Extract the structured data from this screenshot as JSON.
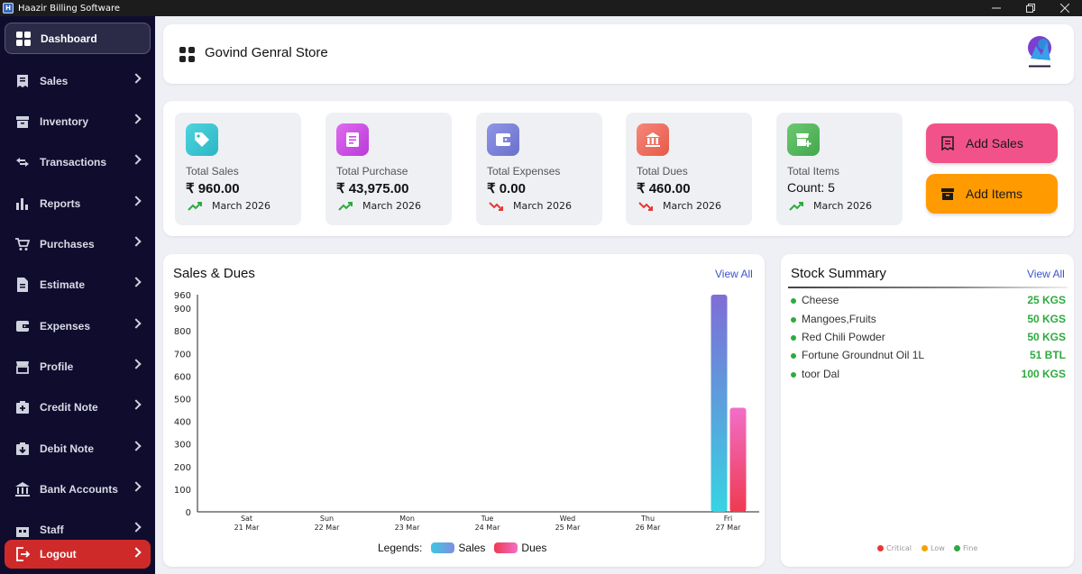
{
  "window": {
    "title": "Haazir Billing Software",
    "icon": "app-icon"
  },
  "sidebar": {
    "items": [
      {
        "label": "Dashboard",
        "icon": "dashboard-grid-icon"
      },
      {
        "label": "Sales",
        "icon": "receipt-icon"
      },
      {
        "label": "Inventory",
        "icon": "inventory-box-icon"
      },
      {
        "label": "Transactions",
        "icon": "arrows-exchange-icon"
      },
      {
        "label": "Reports",
        "icon": "bar-chart-icon"
      },
      {
        "label": "Purchases",
        "icon": "cart-icon"
      },
      {
        "label": "Estimate",
        "icon": "document-icon"
      },
      {
        "label": "Expenses",
        "icon": "wallet-icon"
      },
      {
        "label": "Profile",
        "icon": "store-icon"
      },
      {
        "label": "Credit Note",
        "icon": "credit-note-icon"
      },
      {
        "label": "Debit Note",
        "icon": "debit-note-icon"
      },
      {
        "label": "Bank Accounts",
        "icon": "bank-icon"
      },
      {
        "label": "Staff",
        "icon": "staff-icon"
      }
    ],
    "logout_label": "Logout"
  },
  "header": {
    "store_name": "Govind Genral Store",
    "brand_logo": "haazir-logo"
  },
  "stats": [
    {
      "label": "Total Sales",
      "value": "₹ 960.00",
      "period": "March 2026",
      "trend": "up",
      "icon": "tag-icon",
      "color": "#3ec6d3"
    },
    {
      "label": "Total Purchase",
      "value": "₹ 43,975.00",
      "period": "March 2026",
      "trend": "up",
      "icon": "purchase-doc-icon",
      "color": "#c54be0"
    },
    {
      "label": "Total Expenses",
      "value": "₹ 0.00",
      "period": "March 2026",
      "trend": "down",
      "icon": "wallet-icon",
      "color": "#7d84d9"
    },
    {
      "label": "Total Dues",
      "value": "₹ 460.00",
      "period": "March 2026",
      "trend": "down",
      "icon": "bank-icon",
      "color": "#ef6d5a"
    },
    {
      "label": "Total Items",
      "value": "Count: 5",
      "period": "March 2026",
      "trend": "up",
      "icon": "store-add-icon",
      "color": "#55b85d"
    }
  ],
  "actions": {
    "add_sales": {
      "label": "Add Sales",
      "color": "#f1528a"
    },
    "add_items": {
      "label": "Add Items",
      "color": "#ff9a00"
    }
  },
  "sales_chart": {
    "title": "Sales & Dues",
    "view_all": "View All",
    "legend_title": "Legends:",
    "chart_data": {
      "type": "bar",
      "categories": [
        "Sat\n21 Mar",
        "Sun\n22 Mar",
        "Mon\n23 Mar",
        "Tue\n24 Mar",
        "Wed\n25 Mar",
        "Thu\n26 Mar",
        "Fri\n27 Mar"
      ],
      "series": [
        {
          "name": "Sales",
          "values": [
            0,
            0,
            0,
            0,
            0,
            0,
            960
          ],
          "color_top": "#7f6dd6",
          "color_bottom": "#37d3e3"
        },
        {
          "name": "Dues",
          "values": [
            0,
            0,
            0,
            0,
            0,
            0,
            460
          ],
          "color_top": "#f26ec8",
          "color_bottom": "#ef3a50"
        }
      ],
      "yticks": [
        0,
        100,
        200,
        300,
        400,
        500,
        600,
        700,
        800,
        900,
        960
      ],
      "ylim": [
        0,
        960
      ],
      "legend_placement": "bottom"
    }
  },
  "stock": {
    "title": "Stock Summary",
    "view_all": "View All",
    "items": [
      {
        "name": "Cheese",
        "qty": "25 KGS"
      },
      {
        "name": "Mangoes,Fruits",
        "qty": "50 KGS"
      },
      {
        "name": "Red Chili Powder",
        "qty": "50 KGS"
      },
      {
        "name": "Fortune Groundnut Oil 1L",
        "qty": "51 BTL"
      },
      {
        "name": "toor Dal",
        "qty": "100 KGS"
      }
    ],
    "levels": [
      {
        "label": "Critical",
        "color": "#e53935"
      },
      {
        "label": "Low",
        "color": "#f5a300"
      },
      {
        "label": "Fine",
        "color": "#2eaa3f"
      }
    ]
  }
}
